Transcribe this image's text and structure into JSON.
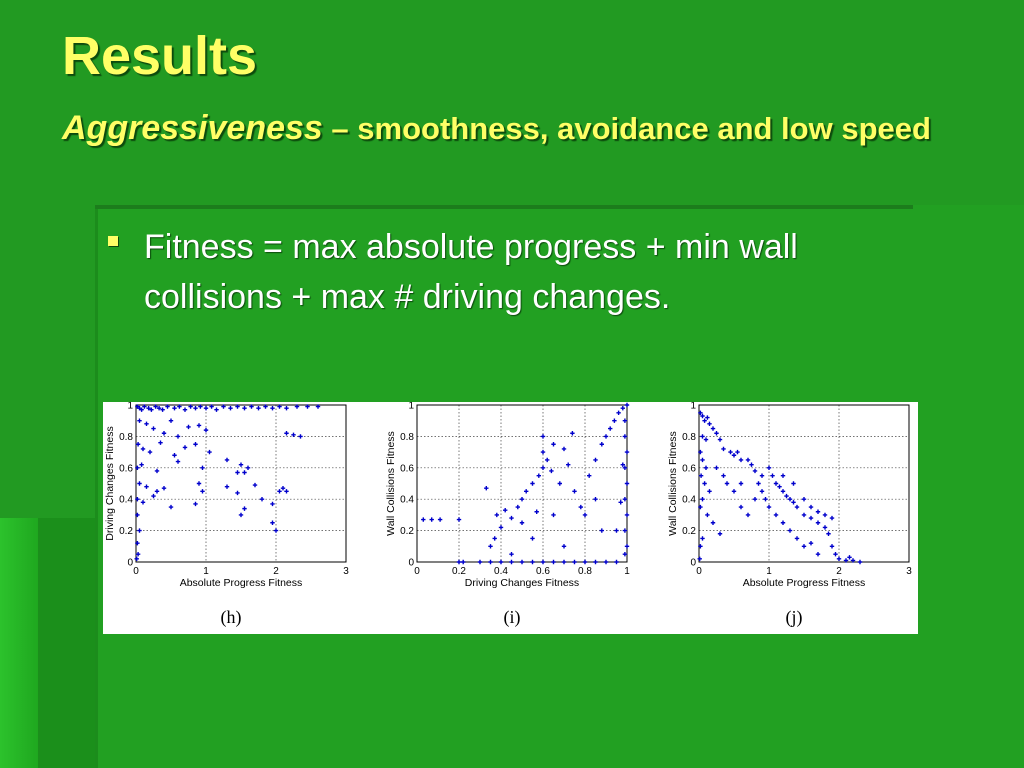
{
  "slide": {
    "title": "Results",
    "subtitle_emphasis": "Aggressiveness",
    "subtitle_rest": " – smoothness, avoidance and low speed",
    "bullet": "Fitness = max absolute progress + min wall collisions + max # driving changes."
  },
  "colors": {
    "title": "#ffff66",
    "background": "#229a22",
    "points": "#0000cc"
  },
  "chart_data": [
    {
      "type": "scatter",
      "caption": "(h)",
      "xlabel": "Absolute Progress Fitness",
      "ylabel": "Driving Changes Fitness",
      "xlim": [
        0,
        3
      ],
      "ylim": [
        0,
        1
      ],
      "xticks": [
        0,
        1,
        2,
        3
      ],
      "yticks": [
        0,
        0.2,
        0.4,
        0.6,
        0.8,
        1
      ],
      "xticklabels": [
        "0",
        "1",
        "2",
        "3"
      ],
      "yticklabels": [
        "0",
        "0.2",
        "0.4",
        "0.6",
        "0.8",
        "1"
      ],
      "grid": true,
      "points": [
        [
          0.02,
          0.99
        ],
        [
          0.05,
          0.98
        ],
        [
          0.08,
          0.97
        ],
        [
          0.12,
          0.99
        ],
        [
          0.18,
          0.98
        ],
        [
          0.22,
          0.97
        ],
        [
          0.28,
          0.99
        ],
        [
          0.33,
          0.98
        ],
        [
          0.38,
          0.97
        ],
        [
          0.45,
          0.99
        ],
        [
          0.55,
          0.98
        ],
        [
          0.62,
          0.99
        ],
        [
          0.7,
          0.97
        ],
        [
          0.78,
          0.99
        ],
        [
          0.85,
          0.98
        ],
        [
          0.92,
          0.99
        ],
        [
          1.0,
          0.98
        ],
        [
          1.08,
          0.99
        ],
        [
          1.15,
          0.97
        ],
        [
          1.25,
          0.99
        ],
        [
          1.35,
          0.98
        ],
        [
          1.45,
          0.99
        ],
        [
          1.55,
          0.98
        ],
        [
          1.65,
          0.99
        ],
        [
          1.75,
          0.98
        ],
        [
          1.85,
          0.99
        ],
        [
          1.95,
          0.98
        ],
        [
          2.05,
          0.99
        ],
        [
          2.15,
          0.98
        ],
        [
          2.3,
          0.99
        ],
        [
          2.45,
          0.99
        ],
        [
          2.6,
          0.99
        ],
        [
          0.05,
          0.9
        ],
        [
          0.15,
          0.88
        ],
        [
          0.25,
          0.85
        ],
        [
          0.4,
          0.82
        ],
        [
          0.5,
          0.9
        ],
        [
          0.6,
          0.8
        ],
        [
          0.75,
          0.86
        ],
        [
          0.9,
          0.87
        ],
        [
          1.0,
          0.84
        ],
        [
          2.15,
          0.82
        ],
        [
          2.25,
          0.81
        ],
        [
          2.35,
          0.8
        ],
        [
          0.03,
          0.75
        ],
        [
          0.1,
          0.72
        ],
        [
          0.2,
          0.7
        ],
        [
          0.35,
          0.76
        ],
        [
          0.55,
          0.68
        ],
        [
          0.7,
          0.73
        ],
        [
          0.85,
          0.75
        ],
        [
          1.05,
          0.7
        ],
        [
          0.02,
          0.6
        ],
        [
          0.08,
          0.62
        ],
        [
          0.3,
          0.58
        ],
        [
          0.6,
          0.64
        ],
        [
          0.95,
          0.6
        ],
        [
          1.5,
          0.62
        ],
        [
          1.6,
          0.6
        ],
        [
          1.45,
          0.57
        ],
        [
          0.05,
          0.5
        ],
        [
          0.15,
          0.48
        ],
        [
          0.3,
          0.45
        ],
        [
          0.4,
          0.47
        ],
        [
          0.9,
          0.5
        ],
        [
          0.95,
          0.45
        ],
        [
          1.3,
          0.48
        ],
        [
          1.45,
          0.44
        ],
        [
          1.7,
          0.49
        ],
        [
          2.1,
          0.47
        ],
        [
          2.15,
          0.45
        ],
        [
          0.02,
          0.4
        ],
        [
          0.1,
          0.38
        ],
        [
          0.25,
          0.42
        ],
        [
          0.5,
          0.35
        ],
        [
          0.85,
          0.37
        ],
        [
          1.5,
          0.3
        ],
        [
          1.55,
          0.34
        ],
        [
          1.8,
          0.4
        ],
        [
          1.95,
          0.37
        ],
        [
          0.02,
          0.3
        ],
        [
          0.05,
          0.2
        ],
        [
          0.02,
          0.12
        ],
        [
          0.03,
          0.05
        ],
        [
          0.01,
          0.02
        ],
        [
          1.95,
          0.25
        ],
        [
          2.0,
          0.2
        ],
        [
          2.05,
          0.45
        ],
        [
          1.55,
          0.57
        ],
        [
          1.3,
          0.65
        ]
      ]
    },
    {
      "type": "scatter",
      "caption": "(i)",
      "xlabel": "Driving Changes Fitness",
      "ylabel": "Wall Collisions Fitness",
      "xlim": [
        0,
        1
      ],
      "ylim": [
        0,
        1
      ],
      "xticks": [
        0,
        0.2,
        0.4,
        0.6,
        0.8,
        1
      ],
      "yticks": [
        0,
        0.2,
        0.4,
        0.6,
        0.8,
        1
      ],
      "xticklabels": [
        "0",
        "0.2",
        "0.4",
        "0.6",
        "0.8",
        "1"
      ],
      "yticklabels": [
        "0",
        "0.2",
        "0.4",
        "0.6",
        "0.8",
        "1"
      ],
      "grid": true,
      "points": [
        [
          0.03,
          0.27
        ],
        [
          0.07,
          0.27
        ],
        [
          0.11,
          0.27
        ],
        [
          0.2,
          0.27
        ],
        [
          0.2,
          0.0
        ],
        [
          0.22,
          0.0
        ],
        [
          0.3,
          0.0
        ],
        [
          0.35,
          0.0
        ],
        [
          0.4,
          0.0
        ],
        [
          0.45,
          0.0
        ],
        [
          0.5,
          0.0
        ],
        [
          0.55,
          0.0
        ],
        [
          0.6,
          0.0
        ],
        [
          0.65,
          0.0
        ],
        [
          0.7,
          0.0
        ],
        [
          0.75,
          0.0
        ],
        [
          0.8,
          0.0
        ],
        [
          0.85,
          0.0
        ],
        [
          0.9,
          0.0
        ],
        [
          0.95,
          0.0
        ],
        [
          0.35,
          0.1
        ],
        [
          0.37,
          0.15
        ],
        [
          0.4,
          0.22
        ],
        [
          0.38,
          0.3
        ],
        [
          0.42,
          0.33
        ],
        [
          0.45,
          0.28
        ],
        [
          0.48,
          0.35
        ],
        [
          0.5,
          0.4
        ],
        [
          0.52,
          0.45
        ],
        [
          0.5,
          0.25
        ],
        [
          0.55,
          0.5
        ],
        [
          0.58,
          0.55
        ],
        [
          0.6,
          0.6
        ],
        [
          0.62,
          0.65
        ],
        [
          0.64,
          0.58
        ],
        [
          0.6,
          0.7
        ],
        [
          0.65,
          0.75
        ],
        [
          0.7,
          0.72
        ],
        [
          0.72,
          0.62
        ],
        [
          0.68,
          0.5
        ],
        [
          0.75,
          0.45
        ],
        [
          0.78,
          0.35
        ],
        [
          0.8,
          0.3
        ],
        [
          0.82,
          0.55
        ],
        [
          0.85,
          0.65
        ],
        [
          0.88,
          0.75
        ],
        [
          0.9,
          0.8
        ],
        [
          0.92,
          0.85
        ],
        [
          0.94,
          0.9
        ],
        [
          0.96,
          0.95
        ],
        [
          0.98,
          0.98
        ],
        [
          1.0,
          1.0
        ],
        [
          0.99,
          0.9
        ],
        [
          0.99,
          0.8
        ],
        [
          1.0,
          0.7
        ],
        [
          0.99,
          0.6
        ],
        [
          1.0,
          0.5
        ],
        [
          0.99,
          0.4
        ],
        [
          1.0,
          0.3
        ],
        [
          0.99,
          0.2
        ],
        [
          1.0,
          0.1
        ],
        [
          0.99,
          0.05
        ],
        [
          0.98,
          0.62
        ],
        [
          0.97,
          0.38
        ],
        [
          0.95,
          0.2
        ],
        [
          0.65,
          0.3
        ],
        [
          0.7,
          0.1
        ],
        [
          0.55,
          0.15
        ],
        [
          0.45,
          0.05
        ],
        [
          0.33,
          0.47
        ],
        [
          0.6,
          0.8
        ],
        [
          0.74,
          0.82
        ],
        [
          0.85,
          0.4
        ],
        [
          0.88,
          0.2
        ],
        [
          0.57,
          0.32
        ]
      ]
    },
    {
      "type": "scatter",
      "caption": "(j)",
      "xlabel": "Absolute Progress Fitness",
      "ylabel": "Wall Collisions Fitness",
      "xlim": [
        0,
        3
      ],
      "ylim": [
        0,
        1
      ],
      "xticks": [
        0,
        1,
        2,
        3
      ],
      "yticks": [
        0,
        0.2,
        0.4,
        0.6,
        0.8,
        1
      ],
      "xticklabels": [
        "0",
        "1",
        "2",
        "3"
      ],
      "yticklabels": [
        "0",
        "0.2",
        "0.4",
        "0.6",
        "0.8",
        "1"
      ],
      "grid": true,
      "points": [
        [
          0.02,
          0.95
        ],
        [
          0.05,
          0.93
        ],
        [
          0.08,
          0.9
        ],
        [
          0.12,
          0.92
        ],
        [
          0.15,
          0.88
        ],
        [
          0.2,
          0.85
        ],
        [
          0.25,
          0.82
        ],
        [
          0.05,
          0.8
        ],
        [
          0.1,
          0.78
        ],
        [
          0.3,
          0.78
        ],
        [
          0.35,
          0.72
        ],
        [
          0.45,
          0.7
        ],
        [
          0.5,
          0.68
        ],
        [
          0.55,
          0.7
        ],
        [
          0.6,
          0.65
        ],
        [
          0.7,
          0.65
        ],
        [
          0.75,
          0.62
        ],
        [
          0.8,
          0.58
        ],
        [
          0.9,
          0.55
        ],
        [
          1.0,
          0.6
        ],
        [
          1.05,
          0.55
        ],
        [
          1.1,
          0.5
        ],
        [
          1.15,
          0.48
        ],
        [
          1.2,
          0.45
        ],
        [
          1.25,
          0.42
        ],
        [
          1.3,
          0.4
        ],
        [
          1.35,
          0.38
        ],
        [
          1.4,
          0.35
        ],
        [
          1.5,
          0.3
        ],
        [
          1.6,
          0.28
        ],
        [
          1.7,
          0.25
        ],
        [
          1.8,
          0.22
        ],
        [
          1.85,
          0.18
        ],
        [
          1.9,
          0.1
        ],
        [
          1.95,
          0.05
        ],
        [
          2.0,
          0.02
        ],
        [
          2.1,
          0.01
        ],
        [
          2.2,
          0.01
        ],
        [
          2.3,
          0.0
        ],
        [
          2.15,
          0.03
        ],
        [
          0.02,
          0.7
        ],
        [
          0.05,
          0.65
        ],
        [
          0.1,
          0.6
        ],
        [
          0.03,
          0.55
        ],
        [
          0.08,
          0.5
        ],
        [
          0.15,
          0.45
        ],
        [
          0.05,
          0.4
        ],
        [
          0.02,
          0.35
        ],
        [
          0.12,
          0.3
        ],
        [
          0.2,
          0.25
        ],
        [
          0.3,
          0.18
        ],
        [
          0.05,
          0.15
        ],
        [
          0.02,
          0.1
        ],
        [
          0.01,
          0.02
        ],
        [
          0.4,
          0.5
        ],
        [
          0.5,
          0.45
        ],
        [
          0.6,
          0.35
        ],
        [
          0.7,
          0.3
        ],
        [
          0.8,
          0.4
        ],
        [
          0.9,
          0.45
        ],
        [
          1.0,
          0.35
        ],
        [
          1.1,
          0.3
        ],
        [
          1.2,
          0.25
        ],
        [
          1.3,
          0.2
        ],
        [
          1.4,
          0.15
        ],
        [
          1.5,
          0.1
        ],
        [
          1.6,
          0.12
        ],
        [
          1.7,
          0.05
        ],
        [
          1.2,
          0.55
        ],
        [
          1.35,
          0.5
        ],
        [
          1.5,
          0.4
        ],
        [
          1.6,
          0.35
        ],
        [
          1.7,
          0.32
        ],
        [
          1.8,
          0.3
        ],
        [
          1.9,
          0.28
        ],
        [
          0.25,
          0.6
        ],
        [
          0.35,
          0.55
        ],
        [
          0.6,
          0.5
        ],
        [
          0.85,
          0.5
        ],
        [
          0.95,
          0.4
        ]
      ]
    }
  ]
}
